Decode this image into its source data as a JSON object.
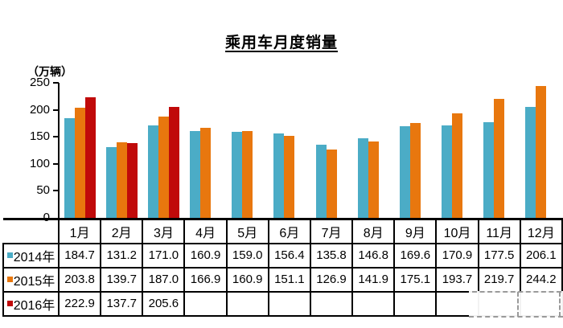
{
  "title": "乘用车月度销量",
  "unit_label": "（万辆）",
  "colors": {
    "series_2014": "#4BACC6",
    "series_2015": "#E8770E",
    "series_2016": "#C00A0A",
    "axis": "#000000",
    "table_border": "#000000",
    "watermark_dash": "#9a9a9a"
  },
  "chart_data": {
    "type": "bar",
    "title": "乘用车月度销量",
    "ylabel": "（万辆）",
    "xlabel": "",
    "ylim": [
      0,
      250
    ],
    "yticks": [
      0,
      50,
      100,
      150,
      200,
      250
    ],
    "grid": false,
    "legend_position": "table-row-headers",
    "categories": [
      "1月",
      "2月",
      "3月",
      "4月",
      "5月",
      "6月",
      "7月",
      "8月",
      "9月",
      "10月",
      "11月",
      "12月"
    ],
    "series": [
      {
        "name": "2014年",
        "color": "#4BACC6",
        "values": [
          184.7,
          131.2,
          171.0,
          160.9,
          159.0,
          156.4,
          135.8,
          146.8,
          169.6,
          170.9,
          177.5,
          206.1
        ]
      },
      {
        "name": "2015年",
        "color": "#E8770E",
        "values": [
          203.8,
          139.7,
          187.0,
          166.9,
          160.9,
          151.1,
          126.9,
          141.9,
          175.1,
          193.7,
          219.7,
          244.2
        ]
      },
      {
        "name": "2016年",
        "color": "#C00A0A",
        "values": [
          222.9,
          137.7,
          205.6,
          null,
          null,
          null,
          null,
          null,
          null,
          null,
          null,
          null
        ]
      }
    ]
  },
  "watermark": {
    "present": "true"
  }
}
